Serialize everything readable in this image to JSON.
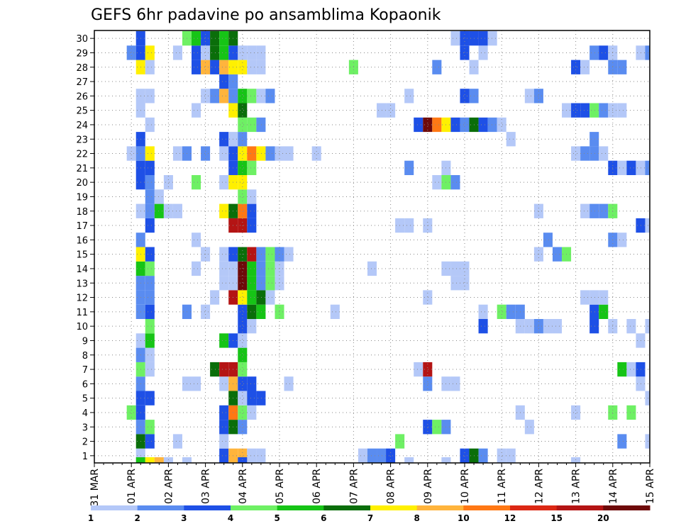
{
  "chart_data": {
    "type": "heatmap",
    "title": "GEFS 6hr padavine po ansamblima Kopaonik",
    "xlabel": "",
    "ylabel": "",
    "y_labels": [
      "1",
      "2",
      "3",
      "4",
      "5",
      "6",
      "7",
      "8",
      "9",
      "10",
      "11",
      "12",
      "13",
      "14",
      "15",
      "16",
      "17",
      "18",
      "19",
      "20",
      "21",
      "22",
      "23",
      "24",
      "25",
      "26",
      "27",
      "28",
      "29",
      "30"
    ],
    "x_labels": [
      "31 MAR",
      "01 APR",
      "02 APR",
      "03 APR",
      "04 APR",
      "05 APR",
      "06 APR",
      "07 APR",
      "08 APR",
      "09 APR",
      "10 APR",
      "11 APR",
      "12 APR",
      "13 APR",
      "14 APR",
      "15 APR"
    ],
    "time_steps": 61,
    "steps_per_day": 4,
    "grid": true,
    "color_scale": {
      "labels": [
        "1",
        "2",
        "3",
        "4",
        "5",
        "6",
        "7",
        "8",
        "10",
        "12",
        "15",
        "20"
      ],
      "colors": [
        "#b4c8f8",
        "#5a8cf0",
        "#1e50e6",
        "#6ef064",
        "#16c416",
        "#0a6e0a",
        "#fff000",
        "#ffb43c",
        "#ff7814",
        "#dc2814",
        "#b41414",
        "#6e0a0a"
      ]
    },
    "cells": [
      [
        1,
        5,
        1
      ],
      [
        1,
        14,
        3
      ],
      [
        1,
        15,
        8
      ],
      [
        1,
        16,
        8
      ],
      [
        1,
        17,
        1
      ],
      [
        1,
        18,
        1
      ],
      [
        1,
        29,
        1
      ],
      [
        1,
        30,
        2
      ],
      [
        1,
        31,
        2
      ],
      [
        1,
        32,
        3
      ],
      [
        1,
        40,
        3
      ],
      [
        1,
        41,
        6
      ],
      [
        1,
        42,
        2
      ],
      [
        1,
        44,
        1
      ],
      [
        1,
        45,
        1
      ],
      [
        2,
        5,
        6
      ],
      [
        2,
        6,
        3
      ],
      [
        2,
        9,
        1
      ],
      [
        2,
        14,
        1
      ],
      [
        2,
        33,
        4
      ],
      [
        2,
        57,
        2
      ],
      [
        2,
        60,
        1
      ],
      [
        3,
        5,
        2
      ],
      [
        3,
        6,
        4
      ],
      [
        3,
        14,
        3
      ],
      [
        3,
        15,
        6
      ],
      [
        3,
        16,
        2
      ],
      [
        3,
        36,
        3
      ],
      [
        3,
        37,
        4
      ],
      [
        3,
        38,
        2
      ],
      [
        3,
        47,
        1
      ],
      [
        4,
        4,
        4
      ],
      [
        4,
        5,
        3
      ],
      [
        4,
        14,
        3
      ],
      [
        4,
        15,
        9
      ],
      [
        4,
        16,
        4
      ],
      [
        4,
        17,
        1
      ],
      [
        4,
        46,
        1
      ],
      [
        4,
        52,
        1
      ],
      [
        4,
        56,
        4
      ],
      [
        4,
        58,
        4
      ],
      [
        5,
        5,
        3
      ],
      [
        5,
        6,
        3
      ],
      [
        5,
        15,
        6
      ],
      [
        5,
        16,
        1
      ],
      [
        5,
        17,
        3
      ],
      [
        5,
        18,
        3
      ],
      [
        5,
        60,
        1
      ],
      [
        5,
        61,
        2
      ],
      [
        6,
        5,
        2
      ],
      [
        6,
        10,
        1
      ],
      [
        6,
        11,
        1
      ],
      [
        6,
        14,
        1
      ],
      [
        6,
        15,
        8
      ],
      [
        6,
        16,
        3
      ],
      [
        6,
        17,
        3
      ],
      [
        6,
        21,
        1
      ],
      [
        6,
        36,
        2
      ],
      [
        6,
        38,
        1
      ],
      [
        6,
        39,
        1
      ],
      [
        6,
        59,
        1
      ],
      [
        7,
        5,
        4
      ],
      [
        7,
        6,
        1
      ],
      [
        7,
        13,
        6
      ],
      [
        7,
        14,
        11
      ],
      [
        7,
        15,
        11
      ],
      [
        7,
        16,
        4
      ],
      [
        7,
        35,
        1
      ],
      [
        7,
        36,
        11
      ],
      [
        7,
        57,
        5
      ],
      [
        7,
        58,
        1
      ],
      [
        7,
        59,
        3
      ],
      [
        8,
        5,
        2
      ],
      [
        8,
        6,
        1
      ],
      [
        8,
        16,
        5
      ],
      [
        9,
        5,
        1
      ],
      [
        9,
        6,
        5
      ],
      [
        9,
        14,
        5
      ],
      [
        9,
        15,
        3
      ],
      [
        9,
        16,
        1
      ],
      [
        9,
        59,
        1
      ],
      [
        10,
        6,
        4
      ],
      [
        10,
        16,
        3
      ],
      [
        10,
        17,
        1
      ],
      [
        10,
        42,
        3
      ],
      [
        10,
        46,
        1
      ],
      [
        10,
        47,
        1
      ],
      [
        10,
        48,
        2
      ],
      [
        10,
        49,
        1
      ],
      [
        10,
        50,
        1
      ],
      [
        10,
        54,
        3
      ],
      [
        10,
        56,
        1
      ],
      [
        10,
        58,
        1
      ],
      [
        10,
        60,
        1
      ],
      [
        10,
        61,
        1
      ],
      [
        11,
        5,
        2
      ],
      [
        11,
        6,
        3
      ],
      [
        11,
        10,
        2
      ],
      [
        11,
        12,
        1
      ],
      [
        11,
        16,
        3
      ],
      [
        11,
        17,
        6
      ],
      [
        11,
        18,
        5
      ],
      [
        11,
        20,
        4
      ],
      [
        11,
        26,
        1
      ],
      [
        11,
        42,
        1
      ],
      [
        11,
        44,
        4
      ],
      [
        11,
        45,
        2
      ],
      [
        11,
        46,
        2
      ],
      [
        11,
        54,
        3
      ],
      [
        11,
        55,
        5
      ],
      [
        12,
        5,
        2
      ],
      [
        12,
        6,
        2
      ],
      [
        12,
        13,
        1
      ],
      [
        12,
        15,
        11
      ],
      [
        12,
        16,
        7
      ],
      [
        12,
        17,
        5
      ],
      [
        12,
        18,
        6
      ],
      [
        12,
        19,
        1
      ],
      [
        12,
        36,
        1
      ],
      [
        12,
        53,
        1
      ],
      [
        12,
        54,
        1
      ],
      [
        12,
        55,
        1
      ],
      [
        13,
        5,
        2
      ],
      [
        13,
        6,
        2
      ],
      [
        13,
        14,
        1
      ],
      [
        13,
        15,
        1
      ],
      [
        13,
        16,
        12
      ],
      [
        13,
        17,
        5
      ],
      [
        13,
        18,
        2
      ],
      [
        13,
        19,
        4
      ],
      [
        13,
        20,
        1
      ],
      [
        13,
        39,
        1
      ],
      [
        13,
        40,
        1
      ],
      [
        14,
        5,
        5
      ],
      [
        14,
        6,
        4
      ],
      [
        14,
        11,
        1
      ],
      [
        14,
        14,
        1
      ],
      [
        14,
        15,
        1
      ],
      [
        14,
        16,
        12
      ],
      [
        14,
        17,
        5
      ],
      [
        14,
        18,
        2
      ],
      [
        14,
        19,
        4
      ],
      [
        14,
        20,
        1
      ],
      [
        14,
        30,
        1
      ],
      [
        14,
        38,
        1
      ],
      [
        14,
        39,
        1
      ],
      [
        14,
        40,
        1
      ],
      [
        15,
        5,
        7
      ],
      [
        15,
        6,
        3
      ],
      [
        15,
        12,
        1
      ],
      [
        15,
        14,
        1
      ],
      [
        15,
        15,
        3
      ],
      [
        15,
        16,
        6
      ],
      [
        15,
        17,
        11
      ],
      [
        15,
        18,
        2
      ],
      [
        15,
        19,
        4
      ],
      [
        15,
        20,
        2
      ],
      [
        15,
        21,
        1
      ],
      [
        15,
        48,
        1
      ],
      [
        15,
        50,
        2
      ],
      [
        15,
        51,
        4
      ],
      [
        16,
        5,
        2
      ],
      [
        16,
        11,
        1
      ],
      [
        16,
        49,
        2
      ],
      [
        16,
        56,
        2
      ],
      [
        16,
        57,
        1
      ],
      [
        17,
        6,
        3
      ],
      [
        17,
        15,
        11
      ],
      [
        17,
        16,
        11
      ],
      [
        17,
        17,
        3
      ],
      [
        17,
        33,
        1
      ],
      [
        17,
        34,
        1
      ],
      [
        17,
        36,
        1
      ],
      [
        17,
        59,
        3
      ],
      [
        17,
        60,
        1
      ],
      [
        18,
        5,
        1
      ],
      [
        18,
        6,
        2
      ],
      [
        18,
        7,
        5
      ],
      [
        18,
        8,
        1
      ],
      [
        18,
        9,
        1
      ],
      [
        18,
        14,
        7
      ],
      [
        18,
        15,
        6
      ],
      [
        18,
        16,
        9
      ],
      [
        18,
        17,
        3
      ],
      [
        18,
        48,
        1
      ],
      [
        18,
        53,
        1
      ],
      [
        18,
        54,
        2
      ],
      [
        18,
        55,
        2
      ],
      [
        18,
        56,
        4
      ],
      [
        19,
        6,
        2
      ],
      [
        19,
        7,
        1
      ],
      [
        19,
        16,
        4
      ],
      [
        19,
        17,
        1
      ],
      [
        20,
        5,
        3
      ],
      [
        20,
        6,
        2
      ],
      [
        20,
        8,
        1
      ],
      [
        20,
        11,
        4
      ],
      [
        20,
        14,
        1
      ],
      [
        20,
        15,
        7
      ],
      [
        20,
        16,
        7
      ],
      [
        20,
        37,
        1
      ],
      [
        20,
        38,
        4
      ],
      [
        20,
        39,
        2
      ],
      [
        21,
        5,
        3
      ],
      [
        21,
        6,
        3
      ],
      [
        21,
        15,
        3
      ],
      [
        21,
        16,
        5
      ],
      [
        21,
        17,
        4
      ],
      [
        21,
        34,
        2
      ],
      [
        21,
        38,
        1
      ],
      [
        21,
        56,
        3
      ],
      [
        21,
        57,
        1
      ],
      [
        21,
        58,
        3
      ],
      [
        21,
        59,
        1
      ],
      [
        21,
        60,
        2
      ],
      [
        21,
        61,
        7
      ],
      [
        22,
        4,
        1
      ],
      [
        22,
        5,
        2
      ],
      [
        22,
        6,
        7
      ],
      [
        22,
        9,
        1
      ],
      [
        22,
        10,
        2
      ],
      [
        22,
        12,
        2
      ],
      [
        22,
        14,
        1
      ],
      [
        22,
        15,
        3
      ],
      [
        22,
        16,
        7
      ],
      [
        22,
        17,
        9
      ],
      [
        22,
        18,
        7
      ],
      [
        22,
        19,
        2
      ],
      [
        22,
        20,
        1
      ],
      [
        22,
        21,
        1
      ],
      [
        22,
        24,
        1
      ],
      [
        22,
        52,
        1
      ],
      [
        22,
        53,
        2
      ],
      [
        22,
        54,
        2
      ],
      [
        22,
        55,
        1
      ],
      [
        23,
        5,
        3
      ],
      [
        23,
        14,
        3
      ],
      [
        23,
        15,
        1
      ],
      [
        23,
        16,
        2
      ],
      [
        23,
        45,
        1
      ],
      [
        23,
        54,
        2
      ],
      [
        24,
        6,
        1
      ],
      [
        24,
        16,
        4
      ],
      [
        24,
        17,
        4
      ],
      [
        24,
        18,
        2
      ],
      [
        24,
        35,
        3
      ],
      [
        24,
        36,
        12
      ],
      [
        24,
        37,
        9
      ],
      [
        24,
        38,
        7
      ],
      [
        24,
        39,
        3
      ],
      [
        24,
        40,
        2
      ],
      [
        24,
        41,
        6
      ],
      [
        24,
        42,
        3
      ],
      [
        24,
        43,
        2
      ],
      [
        24,
        44,
        1
      ],
      [
        24,
        61,
        1
      ],
      [
        25,
        5,
        1
      ],
      [
        25,
        11,
        1
      ],
      [
        25,
        15,
        7
      ],
      [
        25,
        16,
        6
      ],
      [
        25,
        31,
        1
      ],
      [
        25,
        32,
        1
      ],
      [
        25,
        51,
        1
      ],
      [
        25,
        52,
        3
      ],
      [
        25,
        53,
        3
      ],
      [
        25,
        54,
        4
      ],
      [
        25,
        55,
        2
      ],
      [
        25,
        56,
        1
      ],
      [
        25,
        57,
        1
      ],
      [
        26,
        5,
        1
      ],
      [
        26,
        6,
        1
      ],
      [
        26,
        12,
        1
      ],
      [
        26,
        13,
        2
      ],
      [
        26,
        14,
        8
      ],
      [
        26,
        15,
        2
      ],
      [
        26,
        16,
        5
      ],
      [
        26,
        17,
        4
      ],
      [
        26,
        18,
        1
      ],
      [
        26,
        19,
        2
      ],
      [
        26,
        34,
        1
      ],
      [
        26,
        40,
        3
      ],
      [
        26,
        41,
        2
      ],
      [
        26,
        47,
        1
      ],
      [
        26,
        48,
        2
      ],
      [
        27,
        14,
        3
      ],
      [
        27,
        15,
        2
      ],
      [
        28,
        5,
        7
      ],
      [
        28,
        6,
        1
      ],
      [
        28,
        11,
        3
      ],
      [
        28,
        12,
        8
      ],
      [
        28,
        13,
        3
      ],
      [
        28,
        14,
        8
      ],
      [
        28,
        15,
        7
      ],
      [
        28,
        16,
        7
      ],
      [
        28,
        17,
        1
      ],
      [
        28,
        18,
        1
      ],
      [
        28,
        28,
        4
      ],
      [
        28,
        37,
        2
      ],
      [
        28,
        41,
        1
      ],
      [
        28,
        52,
        3
      ],
      [
        28,
        53,
        1
      ],
      [
        28,
        56,
        2
      ],
      [
        28,
        57,
        2
      ],
      [
        29,
        4,
        2
      ],
      [
        29,
        5,
        3
      ],
      [
        29,
        6,
        7
      ],
      [
        29,
        9,
        1
      ],
      [
        29,
        11,
        3
      ],
      [
        29,
        12,
        1
      ],
      [
        29,
        13,
        6
      ],
      [
        29,
        14,
        5
      ],
      [
        29,
        15,
        3
      ],
      [
        29,
        16,
        1
      ],
      [
        29,
        17,
        1
      ],
      [
        29,
        18,
        1
      ],
      [
        29,
        40,
        3
      ],
      [
        29,
        42,
        1
      ],
      [
        29,
        54,
        2
      ],
      [
        29,
        55,
        3
      ],
      [
        29,
        56,
        1
      ],
      [
        29,
        59,
        1
      ],
      [
        29,
        60,
        2
      ],
      [
        30,
        5,
        3
      ],
      [
        30,
        10,
        4
      ],
      [
        30,
        11,
        5
      ],
      [
        30,
        12,
        3
      ],
      [
        30,
        13,
        6
      ],
      [
        30,
        14,
        5
      ],
      [
        30,
        15,
        6
      ],
      [
        30,
        39,
        1
      ],
      [
        30,
        40,
        3
      ],
      [
        30,
        41,
        3
      ],
      [
        30,
        42,
        3
      ],
      [
        30,
        43,
        1
      ],
      [
        0,
        5,
        5
      ],
      [
        0,
        6,
        7
      ],
      [
        0,
        7,
        8
      ],
      [
        0,
        8,
        1
      ],
      [
        0,
        10,
        1
      ],
      [
        0,
        16,
        3
      ],
      [
        0,
        34,
        1
      ],
      [
        0,
        38,
        1
      ],
      [
        0,
        52,
        1
      ]
    ]
  }
}
